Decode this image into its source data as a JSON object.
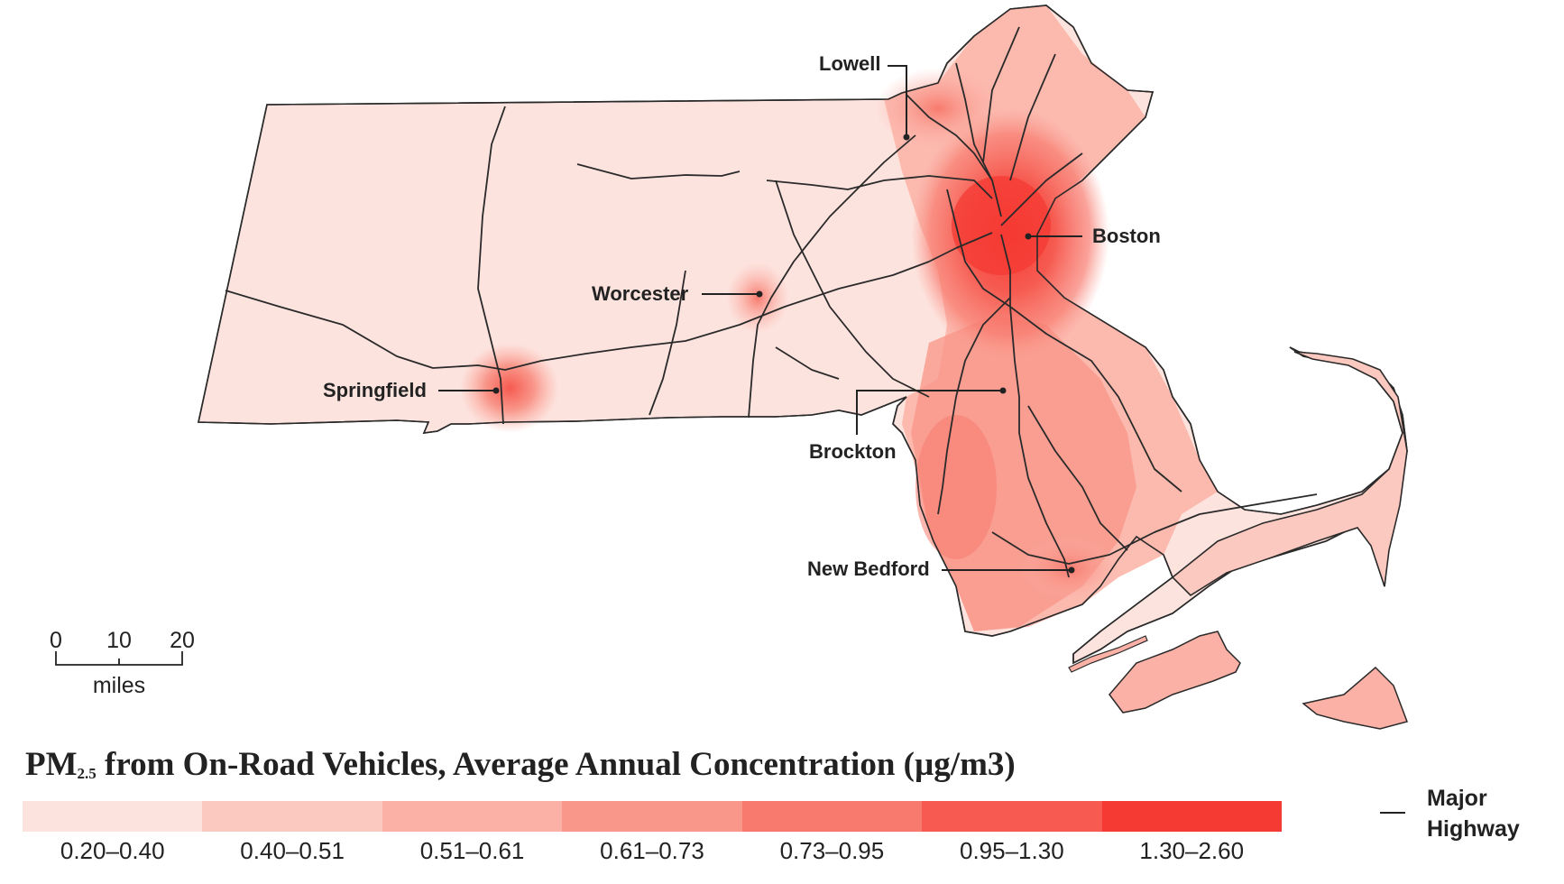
{
  "map": {
    "title_main": "PM",
    "title_sub": "2.5",
    "title_rest": " from On-Road Vehicles, Average Annual Concentration (µg/m3)",
    "cities": {
      "lowell": "Lowell",
      "boston": "Boston",
      "worcester": "Worcester",
      "springfield": "Springfield",
      "brockton": "Brockton",
      "new_bedford": "New Bedford"
    },
    "scale": {
      "t0": "0",
      "t10": "10",
      "t20": "20",
      "unit": "miles"
    },
    "legend": [
      {
        "label": "0.20–0.40",
        "color": "#fde3de"
      },
      {
        "label": "0.40–0.51",
        "color": "#fcc9c0"
      },
      {
        "label": "0.51–0.61",
        "color": "#fbb1a6"
      },
      {
        "label": "0.61–0.73",
        "color": "#f9978b"
      },
      {
        "label": "0.73–0.95",
        "color": "#f87a6e"
      },
      {
        "label": "0.95–1.30",
        "color": "#f65a50"
      },
      {
        "label": "1.30–2.60",
        "color": "#f43a33"
      }
    ],
    "highway_key": "Major Highway"
  }
}
